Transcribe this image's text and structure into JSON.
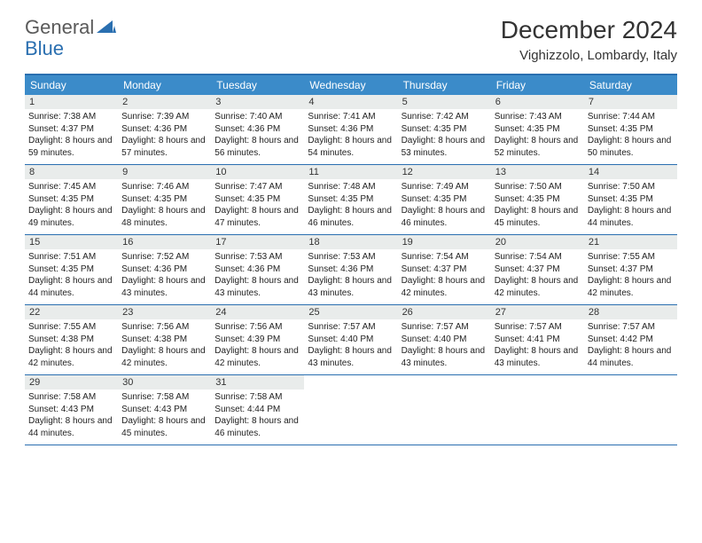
{
  "logo": {
    "general": "General",
    "blue": "Blue"
  },
  "header": {
    "title": "December 2024",
    "location": "Vighizzolo, Lombardy, Italy"
  },
  "colors": {
    "accent": "#3b8bc9",
    "border": "#2a6fb0",
    "daynum_bg": "#e9eceb",
    "text": "#222222"
  },
  "dayNames": [
    "Sunday",
    "Monday",
    "Tuesday",
    "Wednesday",
    "Thursday",
    "Friday",
    "Saturday"
  ],
  "days": [
    {
      "n": "1",
      "sr": "7:38 AM",
      "ss": "4:37 PM",
      "dl": "8 hours and 59 minutes."
    },
    {
      "n": "2",
      "sr": "7:39 AM",
      "ss": "4:36 PM",
      "dl": "8 hours and 57 minutes."
    },
    {
      "n": "3",
      "sr": "7:40 AM",
      "ss": "4:36 PM",
      "dl": "8 hours and 56 minutes."
    },
    {
      "n": "4",
      "sr": "7:41 AM",
      "ss": "4:36 PM",
      "dl": "8 hours and 54 minutes."
    },
    {
      "n": "5",
      "sr": "7:42 AM",
      "ss": "4:35 PM",
      "dl": "8 hours and 53 minutes."
    },
    {
      "n": "6",
      "sr": "7:43 AM",
      "ss": "4:35 PM",
      "dl": "8 hours and 52 minutes."
    },
    {
      "n": "7",
      "sr": "7:44 AM",
      "ss": "4:35 PM",
      "dl": "8 hours and 50 minutes."
    },
    {
      "n": "8",
      "sr": "7:45 AM",
      "ss": "4:35 PM",
      "dl": "8 hours and 49 minutes."
    },
    {
      "n": "9",
      "sr": "7:46 AM",
      "ss": "4:35 PM",
      "dl": "8 hours and 48 minutes."
    },
    {
      "n": "10",
      "sr": "7:47 AM",
      "ss": "4:35 PM",
      "dl": "8 hours and 47 minutes."
    },
    {
      "n": "11",
      "sr": "7:48 AM",
      "ss": "4:35 PM",
      "dl": "8 hours and 46 minutes."
    },
    {
      "n": "12",
      "sr": "7:49 AM",
      "ss": "4:35 PM",
      "dl": "8 hours and 46 minutes."
    },
    {
      "n": "13",
      "sr": "7:50 AM",
      "ss": "4:35 PM",
      "dl": "8 hours and 45 minutes."
    },
    {
      "n": "14",
      "sr": "7:50 AM",
      "ss": "4:35 PM",
      "dl": "8 hours and 44 minutes."
    },
    {
      "n": "15",
      "sr": "7:51 AM",
      "ss": "4:35 PM",
      "dl": "8 hours and 44 minutes."
    },
    {
      "n": "16",
      "sr": "7:52 AM",
      "ss": "4:36 PM",
      "dl": "8 hours and 43 minutes."
    },
    {
      "n": "17",
      "sr": "7:53 AM",
      "ss": "4:36 PM",
      "dl": "8 hours and 43 minutes."
    },
    {
      "n": "18",
      "sr": "7:53 AM",
      "ss": "4:36 PM",
      "dl": "8 hours and 43 minutes."
    },
    {
      "n": "19",
      "sr": "7:54 AM",
      "ss": "4:37 PM",
      "dl": "8 hours and 42 minutes."
    },
    {
      "n": "20",
      "sr": "7:54 AM",
      "ss": "4:37 PM",
      "dl": "8 hours and 42 minutes."
    },
    {
      "n": "21",
      "sr": "7:55 AM",
      "ss": "4:37 PM",
      "dl": "8 hours and 42 minutes."
    },
    {
      "n": "22",
      "sr": "7:55 AM",
      "ss": "4:38 PM",
      "dl": "8 hours and 42 minutes."
    },
    {
      "n": "23",
      "sr": "7:56 AM",
      "ss": "4:38 PM",
      "dl": "8 hours and 42 minutes."
    },
    {
      "n": "24",
      "sr": "7:56 AM",
      "ss": "4:39 PM",
      "dl": "8 hours and 42 minutes."
    },
    {
      "n": "25",
      "sr": "7:57 AM",
      "ss": "4:40 PM",
      "dl": "8 hours and 43 minutes."
    },
    {
      "n": "26",
      "sr": "7:57 AM",
      "ss": "4:40 PM",
      "dl": "8 hours and 43 minutes."
    },
    {
      "n": "27",
      "sr": "7:57 AM",
      "ss": "4:41 PM",
      "dl": "8 hours and 43 minutes."
    },
    {
      "n": "28",
      "sr": "7:57 AM",
      "ss": "4:42 PM",
      "dl": "8 hours and 44 minutes."
    },
    {
      "n": "29",
      "sr": "7:58 AM",
      "ss": "4:43 PM",
      "dl": "8 hours and 44 minutes."
    },
    {
      "n": "30",
      "sr": "7:58 AM",
      "ss": "4:43 PM",
      "dl": "8 hours and 45 minutes."
    },
    {
      "n": "31",
      "sr": "7:58 AM",
      "ss": "4:44 PM",
      "dl": "8 hours and 46 minutes."
    }
  ],
  "labels": {
    "sunrise": "Sunrise: ",
    "sunset": "Sunset: ",
    "daylight": "Daylight: "
  }
}
